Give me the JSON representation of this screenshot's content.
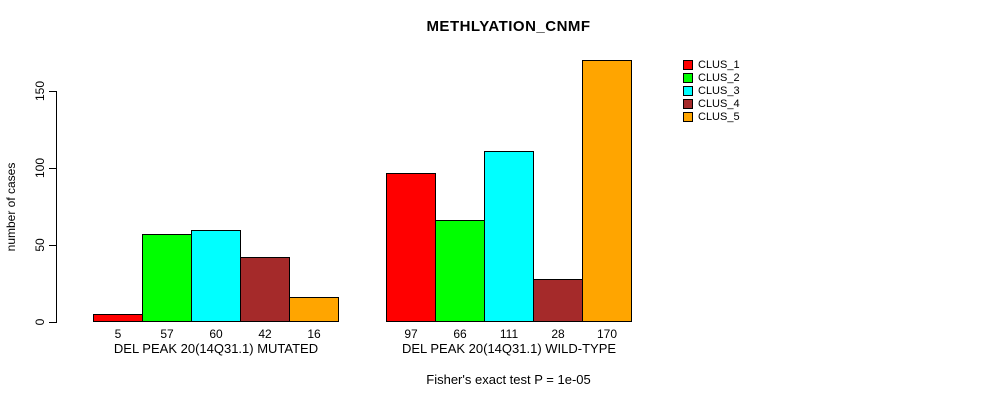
{
  "chart_data": {
    "type": "bar",
    "title": "METHLYATION_CNMF",
    "ylabel": "number of cases",
    "xlabel": "",
    "annotation": "Fisher's exact test P = 1e-05",
    "yticks": [
      0,
      50,
      100,
      150
    ],
    "ylim": [
      0,
      175
    ],
    "grid": false,
    "legend_position": "top-right",
    "bar_value_labels": true,
    "categories": [
      "DEL PEAK 20(14Q31.1) MUTATED",
      "DEL PEAK 20(14Q31.1) WILD-TYPE"
    ],
    "series": [
      {
        "name": "CLUS_1",
        "color": "#FF0000",
        "values": [
          5,
          97
        ]
      },
      {
        "name": "CLUS_2",
        "color": "#00FF00",
        "values": [
          57,
          66
        ]
      },
      {
        "name": "CLUS_3",
        "color": "#00FFFF",
        "values": [
          60,
          111
        ]
      },
      {
        "name": "CLUS_4",
        "color": "#A52A2A",
        "values": [
          42,
          28
        ]
      },
      {
        "name": "CLUS_5",
        "color": "#FFA500",
        "values": [
          16,
          170
        ]
      }
    ]
  }
}
